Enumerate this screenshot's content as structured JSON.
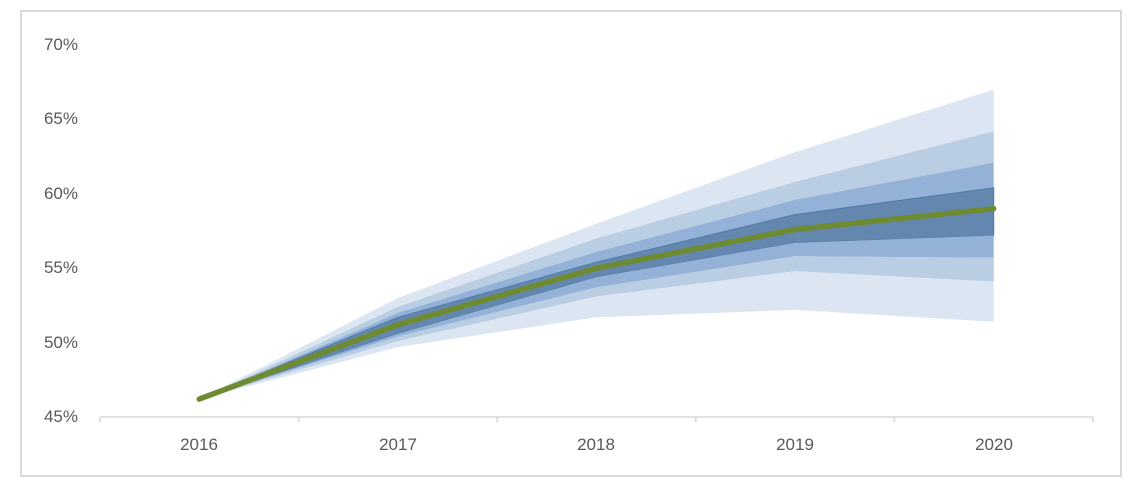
{
  "window": {
    "background": "#ffffff",
    "frame_border_color": "#d9d9d9"
  },
  "chart_data": {
    "type": "area",
    "subtype": "fan-chart-projection",
    "title": "",
    "xlabel": "",
    "ylabel": "",
    "grid": false,
    "legend": false,
    "x_categories": [
      "2016",
      "2017",
      "2018",
      "2019",
      "2020"
    ],
    "y_axis": {
      "min": 45,
      "max": 70,
      "tick_step": 5,
      "format": "percent",
      "tick_labels": [
        "70%",
        "65%",
        "60%",
        "55%",
        "50%",
        "45%"
      ]
    },
    "center_line": {
      "name": "central-estimate",
      "color": "#6F8B32",
      "values": [
        46.2,
        51.2,
        55.0,
        57.6,
        59.0
      ]
    },
    "bands": [
      {
        "name": "upper-outer",
        "shade": "lightest",
        "color": "#DCE6F2",
        "upper": [
          46.2,
          53.0,
          58.0,
          62.8,
          67.0
        ],
        "lower": [
          46.2,
          52.4,
          57.0,
          60.8,
          64.2
        ]
      },
      {
        "name": "upper-mid",
        "shade": "light",
        "color": "#B9CDE3",
        "upper": [
          46.2,
          52.4,
          57.0,
          60.8,
          64.2
        ],
        "lower": [
          46.2,
          52.0,
          56.1,
          59.6,
          62.1
        ]
      },
      {
        "name": "upper-inner",
        "shade": "medium",
        "color": "#94B2D7",
        "upper": [
          46.2,
          52.0,
          56.1,
          59.6,
          62.1
        ],
        "lower": [
          46.2,
          51.7,
          55.4,
          58.6,
          60.4
        ]
      },
      {
        "name": "central",
        "shade": "dark",
        "color": "#6487AF",
        "edge": "#4E79A7",
        "upper": [
          46.2,
          51.7,
          55.4,
          58.6,
          60.4
        ],
        "lower": [
          46.2,
          50.6,
          54.4,
          56.7,
          57.2
        ]
      },
      {
        "name": "lower-inner",
        "shade": "medium",
        "color": "#94B2D7",
        "upper": [
          46.2,
          50.6,
          54.4,
          56.7,
          57.2
        ],
        "lower": [
          46.2,
          50.4,
          53.7,
          55.8,
          55.7
        ]
      },
      {
        "name": "lower-mid",
        "shade": "light",
        "color": "#B9CDE3",
        "upper": [
          46.2,
          50.4,
          53.7,
          55.8,
          55.7
        ],
        "lower": [
          46.2,
          50.1,
          53.1,
          54.8,
          54.1
        ]
      },
      {
        "name": "lower-outer",
        "shade": "lightest",
        "color": "#DCE6F2",
        "upper": [
          46.2,
          50.1,
          53.1,
          54.8,
          54.1
        ],
        "lower": [
          46.2,
          49.7,
          51.7,
          52.2,
          51.4
        ]
      }
    ],
    "colors": {
      "band_lightest": "#DCE6F2",
      "band_light": "#B9CDE3",
      "band_medium": "#94B2D7",
      "band_dark": "#6487AF",
      "line_green": "#6F8B32",
      "axis": "#D9D9D9",
      "label_text": "#595959"
    }
  }
}
